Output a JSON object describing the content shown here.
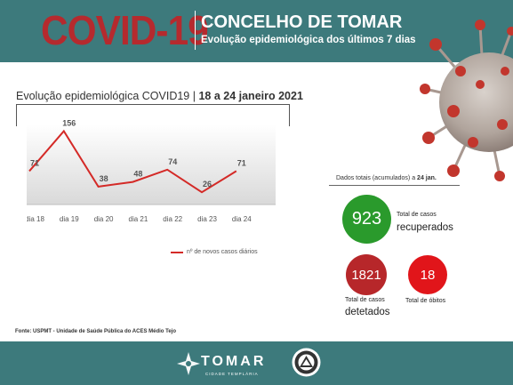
{
  "header": {
    "brand": "COVID-19",
    "title": "CONCELHO DE TOMAR",
    "subtitle": "Evolução epidemiológica dos últimos 7 dias"
  },
  "chart_title": {
    "main": "Evolução epidemiológica COVID19 | ",
    "range": "18 a 24 janeiro 2021"
  },
  "chart_data": {
    "type": "line",
    "title": "Evolução epidemiológica COVID19 | 18 a 24 janeiro 2021",
    "categories": [
      "dia 18",
      "dia 19",
      "dia 20",
      "dia 21",
      "dia 22",
      "dia 23",
      "dia 24"
    ],
    "series": [
      {
        "name": "nº de novos casos diários",
        "values": [
          71,
          156,
          38,
          48,
          74,
          26,
          71
        ],
        "color": "#d42a27"
      }
    ],
    "ylim": [
      0,
      170
    ],
    "grid": false,
    "legend": "bottom-right"
  },
  "totals": {
    "title": "Dados totais (acumulados) a ",
    "title_date": "24 jan.",
    "recovered": {
      "value": "923",
      "label_small": "Total de casos",
      "label_big": "recuperados",
      "color": "#2a9a2c"
    },
    "detected": {
      "value": "1821",
      "label_small": "Total de casos",
      "label_big": "detetados",
      "color": "#b7272a"
    },
    "deaths": {
      "value": "18",
      "label": "Total de óbitos",
      "color": "#e1151a"
    }
  },
  "source": "Fonte: USPMT - Unidade de Saúde Pública do ACES Médio Tejo",
  "footer": {
    "name": "TOMAR",
    "tagline": "CIDADE TEMPLÁRIA"
  }
}
